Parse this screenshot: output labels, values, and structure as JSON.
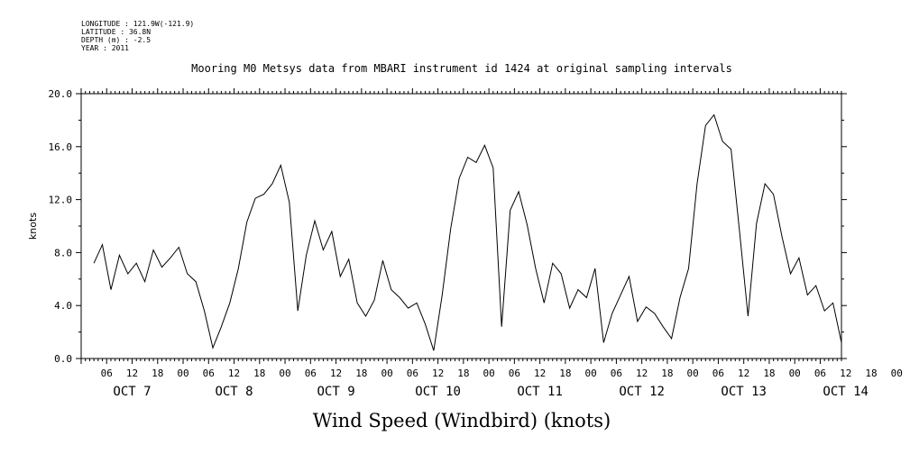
{
  "header": {
    "longitude": "LONGITUDE : 121.9W(-121.9)",
    "latitude": "LATITUDE : 36.8N",
    "depth": "DEPTH (m) : -2.5",
    "year": "YEAR : 2011"
  },
  "chart_data": {
    "type": "line",
    "title": "Mooring M0 Metsys data from MBARI instrument id 1424 at original sampling intervals",
    "xlabel": "Wind Speed (Windbird) (knots)",
    "ylabel": "knots",
    "ylim": [
      0,
      20
    ],
    "yticks": [
      "0.0",
      "4.0",
      "8.0",
      "12.0",
      "16.0",
      "20.0"
    ],
    "hour_tick_labels": [
      "06",
      "12",
      "18",
      "00",
      "06",
      "12",
      "18",
      "00",
      "06",
      "12",
      "18",
      "00",
      "06",
      "12",
      "18",
      "00",
      "06",
      "12",
      "18",
      "00",
      "06",
      "12",
      "18",
      "00",
      "06",
      "12",
      "18",
      "00",
      "06",
      "12",
      "18",
      "00"
    ],
    "day_labels": [
      "OCT 7",
      "OCT 8",
      "OCT 9",
      "OCT 10",
      "OCT 11",
      "OCT 12",
      "OCT 13",
      "OCT 14"
    ],
    "x_unit": "hours since 2011-10-07 00:00",
    "grid": false,
    "series": [
      {
        "x": [
          3,
          5,
          7,
          9,
          11,
          13,
          15,
          17,
          19,
          21,
          23,
          25,
          27,
          29,
          31,
          33,
          35,
          37,
          39,
          41,
          43,
          45,
          47,
          49,
          51,
          53,
          55,
          57,
          59,
          61,
          63,
          65,
          67,
          69,
          71,
          73,
          75,
          77,
          79,
          81,
          83,
          85,
          87,
          89,
          91,
          93,
          95,
          97,
          99,
          101,
          103,
          105,
          107,
          109,
          111,
          113,
          115,
          117,
          119,
          121,
          123,
          125,
          127,
          129,
          131,
          133,
          135,
          137,
          139,
          141,
          143,
          145,
          147,
          149,
          151,
          153,
          155,
          157,
          159,
          161,
          163,
          165,
          167,
          169,
          171,
          173,
          175,
          177,
          179
        ],
        "values": [
          7.2,
          8.6,
          5.2,
          7.8,
          6.4,
          7.2,
          5.8,
          8.2,
          6.9,
          7.6,
          8.4,
          6.4,
          5.8,
          3.6,
          0.8,
          2.4,
          4.2,
          6.8,
          10.3,
          12.1,
          12.4,
          13.2,
          14.6,
          11.8,
          3.6,
          7.8,
          10.4,
          8.2,
          9.6,
          6.2,
          7.5,
          4.2,
          3.2,
          4.4,
          7.4,
          5.2,
          4.6,
          3.8,
          4.2,
          2.6,
          0.6,
          4.8,
          9.8,
          13.6,
          15.2,
          14.8,
          16.1,
          14.4,
          2.4,
          11.2,
          12.6,
          10.1,
          6.8,
          4.2,
          7.2,
          6.4,
          3.8,
          5.2,
          4.6,
          6.8,
          1.2,
          3.4,
          4.8,
          6.2,
          2.8,
          3.9,
          3.4,
          2.4,
          1.5,
          4.6,
          6.8,
          13.2,
          17.6,
          18.4,
          16.4,
          15.8,
          9.6,
          3.2,
          10.2,
          13.2,
          12.4,
          9.2,
          6.4,
          7.6,
          4.8,
          5.5,
          3.6,
          4.2,
          1.2
        ]
      }
    ]
  }
}
